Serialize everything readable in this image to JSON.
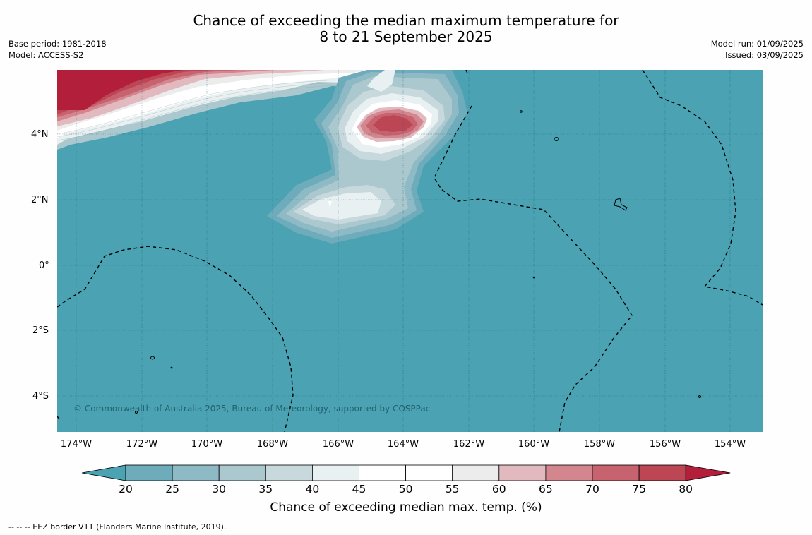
{
  "title_line1": "Chance of exceeding the median maximum temperature for",
  "title_line2": "8 to 21 September 2025",
  "meta_left": {
    "base_period": "Base period: 1981-2018",
    "model": "Model: ACCESS-S2"
  },
  "meta_right": {
    "model_run": "Model run: 01/09/2025",
    "issued": "Issued: 03/09/2025"
  },
  "lat_labels": [
    "4°N",
    "2°N",
    "0°",
    "2°S",
    "4°S"
  ],
  "lon_labels": [
    "174°W",
    "172°W",
    "170°W",
    "168°W",
    "166°W",
    "164°W",
    "162°W",
    "160°W",
    "158°W",
    "156°W",
    "154°W"
  ],
  "copyright": "© Commonwealth of Australia 2025, Bureau of Meteorology, supported by COSPPac",
  "colorbar": {
    "ticks": [
      "20",
      "25",
      "30",
      "35",
      "40",
      "45",
      "50",
      "55",
      "60",
      "65",
      "70",
      "75",
      "80"
    ],
    "colors": [
      "#4aa2b3",
      "#6eacbb",
      "#8dbac5",
      "#abc8ce",
      "#c7d9dd",
      "#e9f0f2",
      "#ffffff",
      "#ffffff",
      "#ececec",
      "#e2b9be",
      "#d4868f",
      "#c7636f",
      "#bd4654",
      "#b31f3b"
    ],
    "label": "Chance of exceeding median max. temp. (%)"
  },
  "footer": "--  --  -- EEZ border V11 (Flanders Marine Institute, 2019)."
}
